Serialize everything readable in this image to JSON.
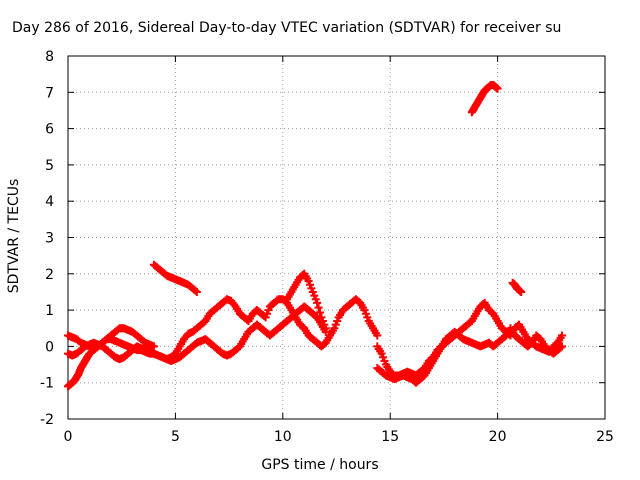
{
  "chart_data": {
    "type": "scatter",
    "title": "Day 286 of 2016, Sidereal Day-to-day VTEC variation (SDTVAR) for receiver su",
    "xlabel": "GPS time / hours",
    "ylabel": "SDTVAR / TECUs",
    "xlim": [
      0,
      25
    ],
    "ylim": [
      -2,
      8
    ],
    "xticks": [
      0,
      5,
      10,
      15,
      20,
      25
    ],
    "yticks": [
      -2,
      -1,
      0,
      1,
      2,
      3,
      4,
      5,
      6,
      7,
      8
    ],
    "grid": true,
    "marker": "+",
    "color": "#ff0000",
    "series": [
      {
        "x": [
          0.0,
          0.2,
          0.4,
          0.6,
          0.8,
          1.0,
          1.2,
          1.4,
          1.6,
          1.8,
          2.0,
          2.2,
          2.4,
          2.6,
          2.8,
          3.0,
          3.2,
          3.4,
          3.6,
          3.8,
          4.0,
          4.2,
          4.4,
          4.6,
          4.8,
          5.0,
          5.2,
          5.4,
          5.6,
          5.8,
          6.0,
          6.2,
          6.4,
          6.6,
          6.8,
          7.0,
          7.2,
          7.4,
          7.6,
          7.8,
          8.0,
          8.2,
          8.4,
          8.6,
          8.8,
          9.0,
          9.2,
          9.4,
          9.6,
          9.8,
          10.0,
          10.2,
          10.4,
          10.6,
          10.8,
          11.0,
          11.2,
          11.4,
          11.6,
          11.8,
          12.0,
          12.2,
          12.4,
          12.6,
          12.8,
          13.0,
          13.2,
          13.4,
          13.6,
          13.8,
          14.0,
          14.2,
          14.4
        ],
        "y": [
          0.3,
          0.25,
          0.2,
          0.1,
          0.05,
          0.0,
          -0.05,
          0.0,
          0.1,
          0.2,
          0.2,
          0.15,
          0.1,
          0.05,
          0.0,
          -0.05,
          -0.1,
          -0.1,
          -0.15,
          -0.2,
          -0.2,
          -0.25,
          -0.3,
          -0.35,
          -0.3,
          -0.2,
          0.0,
          0.2,
          0.35,
          0.4,
          0.5,
          0.6,
          0.7,
          0.9,
          1.0,
          1.1,
          1.2,
          1.3,
          1.25,
          1.1,
          0.9,
          0.8,
          0.7,
          0.9,
          1.0,
          0.9,
          0.8,
          1.1,
          1.2,
          1.3,
          1.3,
          1.2,
          1.0,
          0.8,
          0.6,
          0.5,
          0.3,
          0.2,
          0.1,
          0.0,
          0.1,
          0.3,
          0.5,
          0.8,
          1.0,
          1.1,
          1.2,
          1.3,
          1.2,
          1.0,
          0.7,
          0.5,
          0.3
        ]
      },
      {
        "x": [
          0.0,
          0.2,
          0.4,
          0.6,
          0.8,
          1.0,
          1.2,
          1.4,
          1.6,
          1.8,
          2.0,
          2.2,
          2.4,
          2.6,
          2.8,
          3.0,
          3.2,
          3.4,
          3.6,
          3.8,
          4.0,
          4.2,
          4.4,
          4.6,
          4.8,
          5.0,
          5.2,
          5.4,
          5.6,
          5.8,
          6.0,
          6.2,
          6.4,
          6.6,
          6.8,
          7.0,
          7.2,
          7.4,
          7.6,
          7.8,
          8.0,
          8.2,
          8.4,
          8.6,
          8.8,
          9.0,
          9.2,
          9.4,
          9.6,
          9.8,
          10.0,
          10.2,
          10.4,
          10.6,
          10.8,
          11.0,
          11.2,
          11.4,
          11.6,
          11.8,
          12.0
        ],
        "y": [
          -0.2,
          -0.25,
          -0.2,
          -0.1,
          0.0,
          0.05,
          0.1,
          0.05,
          0.0,
          -0.1,
          -0.2,
          -0.3,
          -0.35,
          -0.3,
          -0.2,
          -0.1,
          0.0,
          -0.05,
          -0.1,
          -0.15,
          -0.2,
          -0.25,
          -0.3,
          -0.35,
          -0.4,
          -0.35,
          -0.3,
          -0.2,
          -0.1,
          0.0,
          0.1,
          0.15,
          0.2,
          0.1,
          0.0,
          -0.1,
          -0.2,
          -0.25,
          -0.2,
          -0.1,
          0.0,
          0.2,
          0.4,
          0.5,
          0.6,
          0.5,
          0.4,
          0.3,
          0.4,
          0.5,
          0.6,
          0.7,
          0.8,
          0.9,
          1.0,
          1.1,
          1.0,
          0.9,
          0.8,
          0.6,
          0.4
        ]
      },
      {
        "x": [
          0.0,
          0.1,
          0.2,
          0.3,
          0.4,
          0.5,
          0.6,
          0.7,
          0.8,
          0.9,
          1.0,
          1.2,
          1.4,
          1.6,
          1.8,
          2.0,
          2.2,
          2.4,
          2.6,
          2.8,
          3.0,
          3.2,
          3.4,
          3.6,
          3.8,
          4.0
        ],
        "y": [
          -1.1,
          -1.05,
          -1.0,
          -0.95,
          -0.85,
          -0.75,
          -0.6,
          -0.5,
          -0.4,
          -0.3,
          -0.2,
          -0.1,
          0.0,
          0.1,
          0.2,
          0.3,
          0.4,
          0.5,
          0.5,
          0.45,
          0.4,
          0.3,
          0.2,
          0.1,
          0.05,
          0.0
        ]
      },
      {
        "x": [
          4.0,
          4.2,
          4.4,
          4.6,
          4.8,
          5.0,
          5.2,
          5.4,
          5.6,
          5.8,
          6.0
        ],
        "y": [
          2.25,
          2.15,
          2.05,
          1.95,
          1.9,
          1.85,
          1.8,
          1.75,
          1.7,
          1.6,
          1.5
        ]
      },
      {
        "x": [
          10.2,
          10.4,
          10.6,
          10.8,
          11.0,
          11.2,
          11.4,
          11.6,
          11.8,
          12.0
        ],
        "y": [
          1.3,
          1.5,
          1.7,
          1.9,
          2.0,
          1.8,
          1.5,
          1.2,
          0.8,
          0.5
        ]
      },
      {
        "x": [
          14.4,
          14.6,
          14.8,
          15.0,
          15.2,
          15.4,
          15.6,
          15.8,
          16.0,
          16.2,
          16.4,
          16.6,
          16.8,
          17.0,
          17.2,
          17.4,
          17.6,
          17.8,
          18.0,
          18.2,
          18.4,
          18.6,
          18.8,
          19.0,
          19.2,
          19.4,
          19.6,
          19.8,
          20.0,
          20.2,
          20.4,
          20.6,
          20.8,
          21.0,
          21.2,
          21.4,
          21.6,
          21.8,
          22.0,
          22.2,
          22.4,
          22.6,
          22.8,
          23.0
        ],
        "y": [
          0.0,
          -0.2,
          -0.5,
          -0.7,
          -0.8,
          -0.8,
          -0.75,
          -0.7,
          -0.75,
          -0.8,
          -0.7,
          -0.6,
          -0.4,
          -0.3,
          -0.1,
          0.0,
          0.1,
          0.2,
          0.3,
          0.4,
          0.5,
          0.6,
          0.7,
          0.9,
          1.1,
          1.2,
          1.0,
          0.9,
          0.7,
          0.5,
          0.4,
          0.3,
          0.5,
          0.6,
          0.4,
          0.2,
          0.1,
          0.0,
          -0.05,
          -0.1,
          -0.15,
          0.0,
          0.1,
          0.3
        ]
      },
      {
        "x": [
          14.4,
          14.6,
          14.8,
          15.0,
          15.2,
          15.4,
          15.6,
          15.8,
          16.0,
          16.2,
          16.4,
          16.6,
          16.8,
          17.0,
          17.2,
          17.4,
          17.6,
          17.8,
          18.0,
          18.2,
          18.4,
          18.6,
          18.8,
          19.0,
          19.2,
          19.4,
          19.6,
          19.8,
          20.0,
          20.2,
          20.4,
          20.6,
          20.8,
          21.0,
          21.2,
          21.4,
          21.6,
          21.8,
          22.0,
          22.2,
          22.4,
          22.6,
          22.8,
          23.0
        ],
        "y": [
          -0.6,
          -0.7,
          -0.8,
          -0.85,
          -0.9,
          -0.85,
          -0.8,
          -0.85,
          -0.9,
          -1.0,
          -0.9,
          -0.8,
          -0.6,
          -0.4,
          -0.2,
          0.0,
          0.2,
          0.3,
          0.4,
          0.3,
          0.2,
          0.15,
          0.1,
          0.05,
          0.0,
          0.05,
          0.1,
          0.0,
          0.1,
          0.2,
          0.3,
          0.5,
          0.3,
          0.2,
          0.1,
          0.0,
          0.1,
          0.3,
          0.2,
          0.0,
          -0.1,
          -0.2,
          -0.1,
          0.0
        ]
      },
      {
        "x": [
          18.8,
          18.9,
          19.0,
          19.1,
          19.2,
          19.3,
          19.4,
          19.5,
          19.6,
          19.7,
          19.8,
          19.9,
          20.0
        ],
        "y": [
          6.45,
          6.55,
          6.65,
          6.75,
          6.85,
          6.95,
          7.05,
          7.1,
          7.15,
          7.2,
          7.2,
          7.15,
          7.1
        ]
      },
      {
        "x": [
          20.7,
          20.8,
          20.9,
          21.0,
          21.1
        ],
        "y": [
          1.75,
          1.7,
          1.6,
          1.55,
          1.5
        ]
      }
    ]
  }
}
